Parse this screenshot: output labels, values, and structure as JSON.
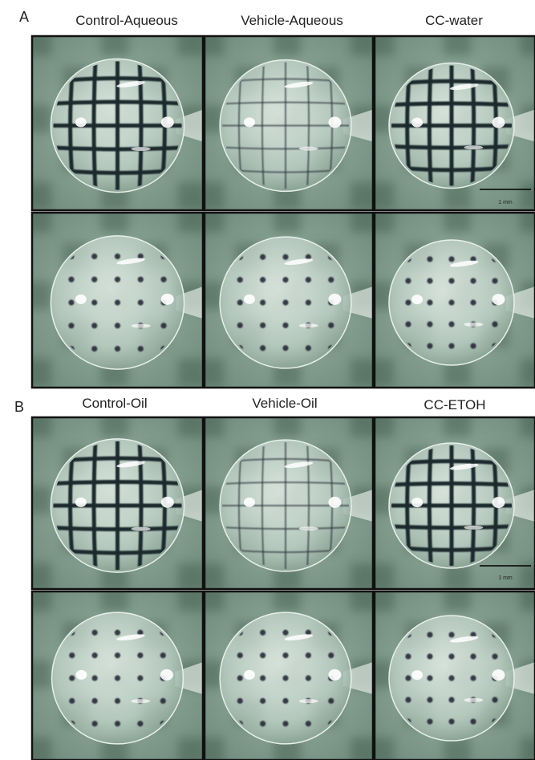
{
  "panels": [
    {
      "label": "A",
      "columns": [
        "Control-Aqueous",
        "Vehicle-Aqueous",
        "CC-water"
      ],
      "scale_bar": "1 mm"
    },
    {
      "label": "B",
      "columns": [
        "Control-Oil",
        "Vehicle-Oil",
        "CC-ETOH"
      ],
      "scale_bar": "1 mm"
    }
  ]
}
